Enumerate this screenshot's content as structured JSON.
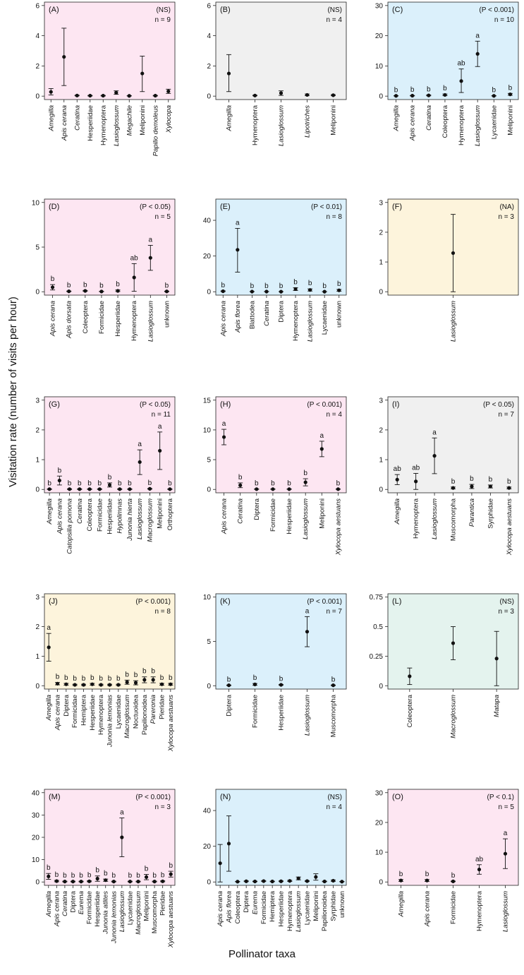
{
  "figure": {
    "ylabel": "Visitation rate (number of visits per hour)",
    "xlabel": "Pollinator taxa"
  },
  "colors": {
    "pink": "#fde6f2",
    "gray": "#f0f0f0",
    "blue": "#dbf0fb",
    "cream": "#fdf4dc",
    "green": "#e4f3ee"
  },
  "chart_data": [
    {
      "panel": "(A)",
      "type": "scatter",
      "stat": "(NS)",
      "n": "n = 9",
      "bg": "pink",
      "ylim": [
        0,
        6
      ],
      "yticks": [
        "0",
        "2",
        "4",
        "6"
      ],
      "ytickvals": [
        0,
        2,
        4,
        6
      ],
      "categories": [
        "Amegilla",
        "Apis cerana",
        "Ceratina",
        "Hesperiidae",
        "Hymenoptera",
        "Lasioglossum",
        "Megachile",
        "Meliponini",
        "Papilio demoleus",
        "Xylocopa"
      ],
      "italic": [
        true,
        true,
        true,
        false,
        false,
        true,
        true,
        false,
        true,
        true
      ],
      "values": [
        0.28,
        2.6,
        0.04,
        0.03,
        0.03,
        0.23,
        0.02,
        1.5,
        0.03,
        0.32
      ],
      "lower": [
        0.08,
        0.7,
        0.02,
        0.01,
        0.01,
        0.12,
        0.01,
        0.3,
        0.01,
        0.18
      ],
      "upper": [
        0.5,
        4.5,
        0.06,
        0.05,
        0.05,
        0.35,
        0.03,
        2.65,
        0.05,
        0.46
      ],
      "letters": null
    },
    {
      "panel": "(B)",
      "type": "scatter",
      "stat": "(NS)",
      "n": "n = 4",
      "bg": "gray",
      "ylim": [
        0,
        6
      ],
      "yticks": [
        "0",
        "2",
        "4",
        "6"
      ],
      "ytickvals": [
        0,
        2,
        4,
        6
      ],
      "categories": [
        "Amegilla",
        "Hymenoptera",
        "Lasioglossum",
        "Lipotriches",
        "Meliponini"
      ],
      "italic": [
        true,
        false,
        true,
        true,
        false
      ],
      "values": [
        1.5,
        0.04,
        0.2,
        0.08,
        0.06
      ],
      "lower": [
        0.3,
        0.02,
        0.05,
        0.03,
        0.03
      ],
      "upper": [
        2.75,
        0.06,
        0.35,
        0.14,
        0.1
      ],
      "letters": null
    },
    {
      "panel": "(C)",
      "type": "scatter",
      "stat": "(P < 0.001)",
      "n": "n = 10",
      "bg": "blue",
      "ylim": [
        0,
        30
      ],
      "yticks": [
        "0",
        "10",
        "20",
        "30"
      ],
      "ytickvals": [
        0,
        10,
        20,
        30
      ],
      "categories": [
        "Amegilla",
        "Apis cerana",
        "Ceratina",
        "Coleoptera",
        "Hymenoptera",
        "Lasioglossum",
        "Lycaenidae",
        "Meliponini"
      ],
      "italic": [
        true,
        true,
        true,
        false,
        false,
        true,
        false,
        false
      ],
      "values": [
        0.1,
        0.15,
        0.25,
        0.4,
        5.0,
        14.0,
        0.1,
        0.6
      ],
      "lower": [
        0.05,
        0.08,
        0.1,
        0.15,
        1.2,
        9.8,
        0.05,
        0.3
      ],
      "upper": [
        0.15,
        0.22,
        0.4,
        0.7,
        9.0,
        18.2,
        0.15,
        0.9
      ],
      "letters": [
        "b",
        "b",
        "b",
        "b",
        "ab",
        "a",
        "b",
        "b"
      ]
    },
    {
      "panel": "(D)",
      "type": "scatter",
      "stat": "(P < 0.05)",
      "n": "n = 5",
      "bg": "pink",
      "ylim": [
        0,
        10
      ],
      "yticks": [
        "0",
        "5",
        "10"
      ],
      "ytickvals": [
        0,
        5,
        10
      ],
      "categories": [
        "Apis cerana",
        "Apis dorsata",
        "Coleoptera",
        "Formicidae",
        "Hesperiidae",
        "Hymenoptera",
        "Lasioglossum",
        "unknown"
      ],
      "italic": [
        true,
        true,
        false,
        false,
        false,
        false,
        true,
        false
      ],
      "values": [
        0.5,
        0.05,
        0.1,
        0.03,
        0.1,
        1.6,
        3.8,
        0.04
      ],
      "lower": [
        0.2,
        0.02,
        0.05,
        0.01,
        0.03,
        0.05,
        2.4,
        0.01
      ],
      "upper": [
        0.8,
        0.08,
        0.15,
        0.05,
        0.2,
        3.15,
        5.2,
        0.07
      ],
      "letters": [
        "b",
        "b",
        "b",
        "b",
        "b",
        "ab",
        "a",
        "b"
      ]
    },
    {
      "panel": "(E)",
      "type": "scatter",
      "stat": "(P < 0.01)",
      "n": "n = 8",
      "bg": "blue",
      "ylim": [
        0,
        50
      ],
      "yticks": [
        "0",
        "20",
        "40"
      ],
      "ytickvals": [
        0,
        20,
        40
      ],
      "categories": [
        "Apis cerana",
        "Apis florea",
        "Blattodea",
        "Ceratina",
        "Diptera",
        "Hymenoptera",
        "Lasioglossum",
        "Lycaenidae",
        "unknown"
      ],
      "italic": [
        true,
        true,
        false,
        true,
        false,
        false,
        true,
        false,
        false
      ],
      "values": [
        0.3,
        23.5,
        0.1,
        0.1,
        0.05,
        1.5,
        1.0,
        0.05,
        0.8
      ],
      "lower": [
        0.1,
        11.0,
        0.05,
        0.05,
        0.02,
        0.7,
        0.4,
        0.02,
        0.3
      ],
      "upper": [
        0.5,
        35.5,
        0.15,
        0.15,
        0.08,
        2.3,
        1.6,
        0.08,
        1.3
      ],
      "letters": [
        "b",
        "a",
        "b",
        "b",
        "b",
        "b",
        "b",
        "b",
        "b"
      ]
    },
    {
      "panel": "(F)",
      "type": "scatter",
      "stat": "(NA)",
      "n": "n = 3",
      "bg": "cream",
      "ylim": [
        0,
        3
      ],
      "yticks": [
        "0",
        "1",
        "2",
        "3"
      ],
      "ytickvals": [
        0,
        1,
        2,
        3
      ],
      "categories": [
        "Lasioglossum"
      ],
      "italic": [
        true
      ],
      "values": [
        1.3
      ],
      "lower": [
        0.0
      ],
      "upper": [
        2.6
      ],
      "letters": null
    },
    {
      "panel": "(G)",
      "type": "scatter",
      "stat": "(P < 0.05)",
      "n": "n = 11",
      "bg": "pink",
      "ylim": [
        0,
        3
      ],
      "yticks": [
        "0",
        "1",
        "2",
        "3"
      ],
      "ytickvals": [
        0,
        1,
        2,
        3
      ],
      "categories": [
        "Amegilla",
        "Apis cerana",
        "Catopsilia pomona",
        "Ceratina",
        "Coleoptera",
        "Formicidae",
        "Hesperiidae",
        "Hypolimnas",
        "Junonia hierta",
        "Lasioglossum",
        "Macroglossum",
        "Meliponini",
        "Orthoptera"
      ],
      "italic": [
        true,
        true,
        true,
        true,
        false,
        false,
        false,
        true,
        true,
        true,
        true,
        false,
        false
      ],
      "values": [
        0.01,
        0.3,
        0.01,
        0.01,
        0.01,
        0.01,
        0.15,
        0.01,
        0.01,
        0.92,
        0.02,
        1.3,
        0.01
      ],
      "lower": [
        0.0,
        0.15,
        0.0,
        0.0,
        0.0,
        0.0,
        0.08,
        0.0,
        0.0,
        0.5,
        0.01,
        0.67,
        0.0
      ],
      "upper": [
        0.02,
        0.45,
        0.02,
        0.02,
        0.02,
        0.02,
        0.22,
        0.02,
        0.02,
        1.33,
        0.03,
        1.93,
        0.02
      ],
      "letters": [
        "b",
        "b",
        "b",
        "b",
        "b",
        "b",
        "b",
        "b",
        "b",
        "a",
        "b",
        "a",
        "b"
      ]
    },
    {
      "panel": "(H)",
      "type": "scatter",
      "stat": "(P < 0.001)",
      "n": "n = 4",
      "bg": "pink",
      "ylim": [
        0,
        15
      ],
      "yticks": [
        "0",
        "5",
        "10",
        "15"
      ],
      "ytickvals": [
        0,
        5,
        10,
        15
      ],
      "categories": [
        "Apis cerana",
        "Ceratina",
        "Diptera",
        "Formicidae",
        "Hesperiidae",
        "Lasioglossum",
        "Meliponini",
        "Xylocopa aestuans"
      ],
      "italic": [
        true,
        true,
        false,
        false,
        false,
        true,
        false,
        true
      ],
      "values": [
        8.8,
        0.7,
        0.05,
        0.05,
        0.05,
        1.2,
        6.8,
        0.05
      ],
      "lower": [
        7.5,
        0.3,
        0.02,
        0.02,
        0.02,
        0.6,
        5.5,
        0.02
      ],
      "upper": [
        10.1,
        1.1,
        0.08,
        0.08,
        0.08,
        1.8,
        8.1,
        0.08
      ],
      "letters": [
        "a",
        "b",
        "b",
        "b",
        "b",
        "b",
        "a",
        "b"
      ]
    },
    {
      "panel": "(I)",
      "type": "scatter",
      "stat": "(P < 0.05)",
      "n": "n = 7",
      "bg": "gray",
      "ylim": [
        0,
        3
      ],
      "yticks": [
        "0",
        "1",
        "2",
        "3"
      ],
      "ytickvals": [
        0,
        1,
        2,
        3
      ],
      "categories": [
        "Amegilla",
        "Hymenoptera",
        "Lasioglossum",
        "Muscomorpha",
        "Parantica",
        "Syrphidae",
        "Xylocopa aestuans"
      ],
      "italic": [
        true,
        false,
        true,
        false,
        true,
        false,
        true
      ],
      "values": [
        0.33,
        0.27,
        1.13,
        0.05,
        0.1,
        0.1,
        0.05
      ],
      "lower": [
        0.16,
        0.0,
        0.53,
        0.02,
        0.03,
        0.05,
        0.02
      ],
      "upper": [
        0.5,
        0.54,
        1.73,
        0.08,
        0.17,
        0.15,
        0.08
      ],
      "letters": [
        "ab",
        "ab",
        "a",
        "b",
        "b",
        "b",
        "b"
      ]
    },
    {
      "panel": "(J)",
      "type": "scatter",
      "stat": "(P < 0.001)",
      "n": "n = 8",
      "bg": "cream",
      "ylim": [
        0,
        3
      ],
      "yticks": [
        "0",
        "1",
        "2",
        "3"
      ],
      "ytickvals": [
        0,
        1,
        2,
        3
      ],
      "categories": [
        "Amegilla",
        "Apis cerana",
        "Diptera",
        "Formicidae",
        "Hemiptera",
        "Hesperiidae",
        "Hymenoptera",
        "Junonia lemonias",
        "Lycaenidae",
        "Macroglossum",
        "Noctuoidea",
        "Papilionoidea",
        "Pareronia",
        "Pieridae",
        "Xylocopa aestuans"
      ],
      "italic": [
        true,
        true,
        false,
        false,
        false,
        false,
        false,
        true,
        false,
        true,
        false,
        false,
        true,
        false,
        true
      ],
      "values": [
        1.3,
        0.07,
        0.05,
        0.03,
        0.03,
        0.05,
        0.03,
        0.03,
        0.03,
        0.12,
        0.1,
        0.2,
        0.2,
        0.05,
        0.05
      ],
      "lower": [
        0.83,
        0.03,
        0.02,
        0.01,
        0.01,
        0.02,
        0.01,
        0.01,
        0.01,
        0.05,
        0.03,
        0.1,
        0.1,
        0.02,
        0.02
      ],
      "upper": [
        1.77,
        0.11,
        0.08,
        0.05,
        0.05,
        0.08,
        0.05,
        0.05,
        0.05,
        0.19,
        0.17,
        0.3,
        0.3,
        0.08,
        0.08
      ],
      "letters": [
        "a",
        "b",
        "b",
        "b",
        "b",
        "b",
        "b",
        "b",
        "b",
        "b",
        "b",
        "b",
        "b",
        "b",
        "b"
      ]
    },
    {
      "panel": "(K)",
      "type": "scatter",
      "stat": "(P < 0.001)",
      "n": "n = 7",
      "bg": "blue",
      "ylim": [
        0,
        10
      ],
      "yticks": [
        "0",
        "5",
        "10"
      ],
      "ytickvals": [
        0,
        5,
        10
      ],
      "categories": [
        "Diptera",
        "Formicidae",
        "Hesperiidae",
        "Lasioglossum",
        "Muscomorpha"
      ],
      "italic": [
        false,
        false,
        false,
        true,
        false
      ],
      "values": [
        0.05,
        0.15,
        0.1,
        6.1,
        0.05
      ],
      "lower": [
        0.02,
        0.05,
        0.05,
        4.4,
        0.02
      ],
      "upper": [
        0.08,
        0.25,
        0.15,
        7.8,
        0.08
      ],
      "letters": [
        "b",
        "b",
        "b",
        "a",
        "b"
      ]
    },
    {
      "panel": "(L)",
      "type": "scatter",
      "stat": "(NS)",
      "n": "n = 3",
      "bg": "green",
      "ylim": [
        0,
        0.75
      ],
      "yticks": [
        "0",
        "0.25",
        "0.5",
        "0.75"
      ],
      "ytickvals": [
        0,
        0.25,
        0.5,
        0.75
      ],
      "categories": [
        "Coleoptera",
        "Macroglossum",
        "Matapa"
      ],
      "italic": [
        false,
        true,
        true
      ],
      "values": [
        0.08,
        0.36,
        0.23
      ],
      "lower": [
        0.01,
        0.22,
        0.0
      ],
      "upper": [
        0.15,
        0.5,
        0.46
      ],
      "letters": null
    },
    {
      "panel": "(M)",
      "type": "scatter",
      "stat": "(P < 0.001)",
      "n": "n = 3",
      "bg": "pink",
      "ylim": [
        0,
        40
      ],
      "yticks": [
        "0",
        "10",
        "20",
        "30",
        "40"
      ],
      "ytickvals": [
        0,
        10,
        20,
        30,
        40
      ],
      "categories": [
        "Amegilla",
        "Apis cerana",
        "Ceratina",
        "Diptera",
        "Eurema",
        "Formicidae",
        "Hesperiidae",
        "Junonia atlites",
        "Junonia lemonias",
        "Lasioglossum",
        "Lycaenidae",
        "Macroglossum",
        "Meliponini",
        "Muscomorpha",
        "Pieridae",
        "Xylocopa aestuans"
      ],
      "italic": [
        true,
        true,
        true,
        false,
        true,
        false,
        false,
        true,
        true,
        true,
        false,
        true,
        false,
        false,
        false,
        true
      ],
      "values": [
        2.5,
        0.4,
        0.2,
        0.2,
        0.2,
        0.3,
        1.5,
        0.8,
        0.2,
        20.0,
        0.2,
        0.2,
        2.2,
        0.2,
        0.3,
        3.5
      ],
      "lower": [
        1.2,
        0.1,
        0.05,
        0.05,
        0.05,
        0.1,
        0.3,
        0.3,
        0.05,
        11.3,
        0.05,
        0.05,
        1.0,
        0.05,
        0.1,
        2.2
      ],
      "upper": [
        3.8,
        0.7,
        0.35,
        0.35,
        0.35,
        0.5,
        2.7,
        1.3,
        0.35,
        28.7,
        0.35,
        0.35,
        3.4,
        0.35,
        0.5,
        4.8
      ],
      "letters": [
        "b",
        "b",
        "b",
        "b",
        "b",
        "b",
        "b",
        "b",
        "b",
        "a",
        "b",
        "b",
        "b",
        "b",
        "b",
        "b"
      ]
    },
    {
      "panel": "(N)",
      "type": "scatter",
      "stat": "(NS)",
      "n": "n = 4",
      "bg": "blue",
      "ylim": [
        0,
        50
      ],
      "yticks": [
        "0",
        "20",
        "40"
      ],
      "ytickvals": [
        0,
        20,
        40
      ],
      "categories": [
        "Apis cerana",
        "Apis florea",
        "Coleoptera",
        "Diptera",
        "Eurema",
        "Formicidae",
        "Hemiptera",
        "Hesperiidae",
        "Hymenoptera",
        "Lasioglossum",
        "Lycaenidae",
        "Meliponini",
        "Papilionoidea",
        "Syrphidae",
        "unknown"
      ],
      "italic": [
        true,
        true,
        false,
        false,
        true,
        false,
        false,
        false,
        false,
        true,
        false,
        false,
        false,
        false,
        false
      ],
      "values": [
        10.5,
        21.5,
        0.2,
        0.4,
        0.3,
        0.5,
        0.3,
        0.4,
        0.6,
        2.0,
        0.5,
        2.8,
        0.3,
        0.7,
        0.2
      ],
      "lower": [
        0.0,
        6.0,
        0.1,
        0.2,
        0.15,
        0.25,
        0.15,
        0.2,
        0.3,
        1.2,
        0.25,
        1.0,
        0.15,
        0.35,
        0.1
      ],
      "upper": [
        21.0,
        37.0,
        0.3,
        0.6,
        0.45,
        0.75,
        0.45,
        0.6,
        0.9,
        2.8,
        0.75,
        4.6,
        0.45,
        1.05,
        0.3
      ],
      "letters": null
    },
    {
      "panel": "(O)",
      "type": "scatter",
      "stat": "(P < 0.1)",
      "n": "n = 5",
      "bg": "pink",
      "ylim": [
        0,
        30
      ],
      "yticks": [
        "0",
        "10",
        "20",
        "30"
      ],
      "ytickvals": [
        0,
        10,
        20,
        30
      ],
      "categories": [
        "Amegilla",
        "Apis cerana",
        "Formicidae",
        "Hymenoptera",
        "Lasioglossum"
      ],
      "italic": [
        true,
        true,
        false,
        false,
        true
      ],
      "values": [
        0.5,
        0.5,
        0.2,
        4.2,
        9.5
      ],
      "lower": [
        0.2,
        0.2,
        0.1,
        2.6,
        4.5
      ],
      "upper": [
        0.8,
        0.8,
        0.3,
        5.8,
        14.5
      ],
      "letters": [
        "b",
        "b",
        "b",
        "ab",
        "a"
      ]
    }
  ]
}
